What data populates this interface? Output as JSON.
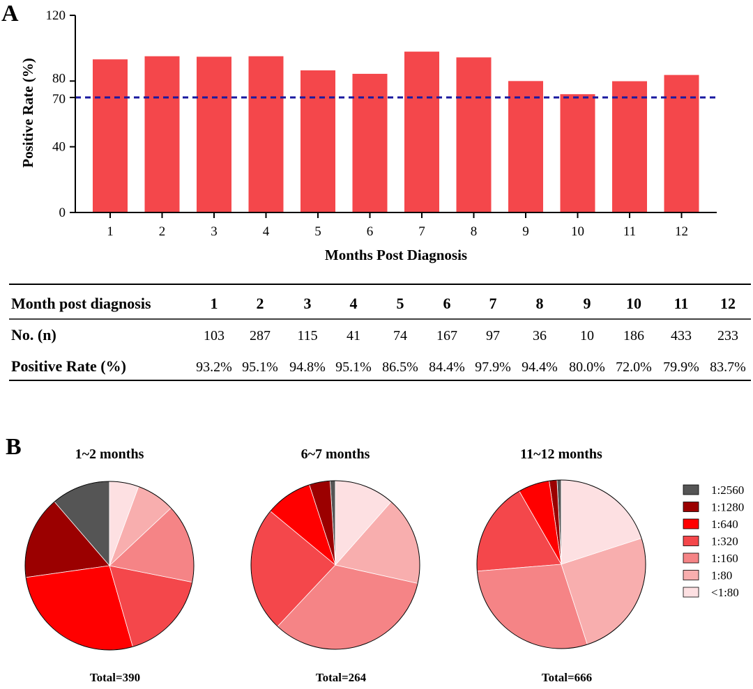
{
  "panel_a": {
    "label": "A",
    "table": {
      "rows": [
        {
          "header": "Month post diagnosis",
          "cells": [
            "1",
            "2",
            "3",
            "4",
            "5",
            "6",
            "7",
            "8",
            "9",
            "10",
            "11",
            "12"
          ]
        },
        {
          "header": "No. (n)",
          "cells": [
            "103",
            "287",
            "115",
            "41",
            "74",
            "167",
            "97",
            "36",
            "10",
            "186",
            "433",
            "233"
          ]
        },
        {
          "header": "Positive Rate (%)",
          "cells": [
            "93.2%",
            "95.1%",
            "94.8%",
            "95.1%",
            "86.5%",
            "84.4%",
            "97.9%",
            "94.4%",
            "80.0%",
            "72.0%",
            "79.9%",
            "83.7%"
          ]
        }
      ]
    }
  },
  "panel_b": {
    "label": "B",
    "legend": [
      "1:2560",
      "1:1280",
      "1:640",
      "1:320",
      "1:160",
      "1:80",
      "<1:80"
    ],
    "colors": [
      "#555555",
      "#9b0000",
      "#ff0000",
      "#f4474b",
      "#f58486",
      "#f8aeae",
      "#fde0e2"
    ]
  },
  "chart_data": [
    {
      "type": "bar",
      "categories": [
        "1",
        "2",
        "3",
        "4",
        "5",
        "6",
        "7",
        "8",
        "9",
        "10",
        "11",
        "12"
      ],
      "values": [
        93.2,
        95.1,
        94.8,
        95.1,
        86.5,
        84.4,
        97.9,
        94.4,
        80.0,
        72.0,
        79.9,
        83.7
      ],
      "xlabel": "Months Post Diagnosis",
      "ylabel": "Positive Rate (%)",
      "ylim": [
        0,
        120
      ],
      "yticks": [
        "0",
        "40",
        "70",
        "80",
        "120"
      ],
      "yticks_values": [
        0,
        40,
        70,
        80,
        120
      ],
      "reference_line": 70,
      "bar_color": "#f4474b",
      "reference_line_color": "#1a1aa0",
      "grid": false
    },
    {
      "type": "pie",
      "title": "1~2 months",
      "total_label": "Total=390",
      "labels": [
        "1:2560",
        "1:1280",
        "1:640",
        "1:320",
        "1:160",
        "1:80",
        "<1:80"
      ],
      "values": [
        11.3,
        15.9,
        27.2,
        17.4,
        15.1,
        7.4,
        5.6
      ]
    },
    {
      "type": "pie",
      "title": "6~7 months",
      "total_label": "Total=264",
      "labels": [
        "1:2560",
        "1:1280",
        "1:640",
        "1:320",
        "1:160",
        "1:80",
        "<1:80"
      ],
      "values": [
        1.0,
        4.0,
        9.0,
        24.0,
        33.5,
        17.0,
        11.5
      ]
    },
    {
      "type": "pie",
      "title": "11~12 months",
      "total_label": "Total=666",
      "labels": [
        "1:2560",
        "1:1280",
        "1:640",
        "1:320",
        "1:160",
        "1:80",
        "<1:80"
      ],
      "values": [
        0.8,
        1.5,
        6.0,
        18.0,
        28.7,
        25.0,
        20.0
      ]
    }
  ]
}
